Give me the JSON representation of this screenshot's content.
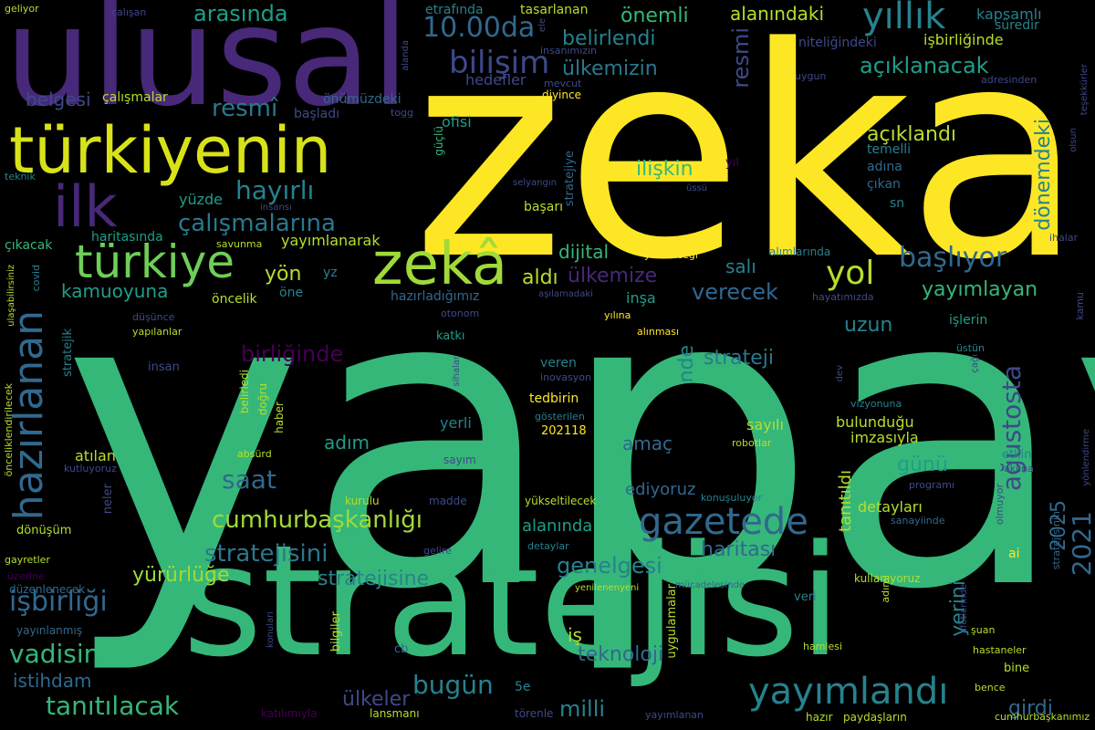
{
  "palette": {
    "background": "#000000",
    "yellow": "#fde725",
    "lime": "#b5de2b",
    "green": "#35b779",
    "green2": "#1f9e89",
    "teal": "#26828e",
    "blue": "#31688e",
    "indigo": "#3e4989",
    "purple": "#482878",
    "dark_purple": "#440154"
  },
  "words": [
    "yapay",
    "zeka",
    "stratejisi",
    "ulusal",
    "türkiyenin",
    "zekâ",
    "ilk",
    "türkiye",
    "hazırlanan",
    "yıllık",
    "bilişim",
    "gazetede",
    "yayımlandı",
    "2021",
    "2025",
    "ağustosta",
    "cumhurbaşkanlığı",
    "tanıtılacak",
    "işbirliği",
    "vadisinde",
    "stratejisini",
    "stratejisine",
    "hayırlı",
    "çalışmalarına",
    "yol",
    "başlıyor",
    "arasında",
    "belirlendi",
    "ülkemizin",
    "açıklanacak",
    "önemli",
    "alanındaki",
    "10.00da",
    "resmî",
    "resmi",
    "belgesi",
    "çalışmalar",
    "açıklandı",
    "ilişkin",
    "dönemdeki",
    "saat",
    "verecek",
    "strateji",
    "haritası",
    "genelgesi",
    "bugün",
    "milli",
    "girdi",
    "yürürlüğe",
    "teknoloji",
    "istihdam",
    "iş",
    "ülkeler",
    "aldı",
    "ülkemize",
    "yön",
    "kamuoyuna",
    "yayımlayan",
    "birliğinde",
    "nde",
    "uzun",
    "amaç",
    "günü",
    "yerini",
    "ediyoruz",
    "tanıtıldı",
    "dijital",
    "salı",
    "yüzde",
    "yayımlanarak",
    "adım",
    "atılan",
    "yerli",
    "sayılı",
    "bulunduğu",
    "imzasıyla",
    "detayları",
    "işbirliğinde",
    "kapsamlı",
    "hedefler",
    "başladı",
    "ofisi",
    "etrafında",
    "tasarlanan",
    "önümüzdeki",
    "diyince",
    "insanımızın",
    "mevcut",
    "süredir",
    "niteliğindeki",
    "adresinden",
    "teşekkürler",
    "olsun",
    "temelli",
    "adına",
    "çıkan",
    "sn",
    "yıl",
    "başarı",
    "stratejiye",
    "güçlü",
    "selyangın",
    "üssü",
    "haritasında",
    "savunma",
    "insansı",
    "çıkacak",
    "covid",
    "ihalar",
    "kamu",
    "geliyor",
    "çalışan",
    "teknik",
    "togg",
    "uygun",
    "öncelik",
    "hazırladığımız",
    "aşılamadaki",
    "otonom",
    "alımlarında",
    "hayatımızda",
    "yılına",
    "alınması",
    "işlerin",
    "katkı",
    "insan",
    "veren",
    "inovasyon",
    "tedbirin",
    "gösterilen",
    "202118",
    "haber",
    "belirledi",
    "doğru",
    "sihalar",
    "vizyonuna",
    "dev",
    "üstün",
    "çağı",
    "robotlar",
    "absürd",
    "sayım",
    "kutluyoruz",
    "etkin",
    "aklına",
    "programı",
    "yönlendirme",
    "kurulu",
    "madde",
    "yükseltilecek",
    "konuşuluyor",
    "sanayiinde",
    "ai",
    "olmuyor",
    "dönüşüm",
    "gelire",
    "detaylar",
    "gayretler",
    "düzenlenecek",
    "üzerine",
    "yayınlanmış",
    "yenilenenyeni",
    "mücadelesinde",
    "kullanıyoruz",
    "veri",
    "adımı",
    "hamlesi",
    "hastaneler",
    "bine",
    "bence",
    "cumhurbaşkanımız",
    "şuan",
    "afetlerinde",
    "konuları",
    "bilgiler",
    "uygulamalar",
    "cb",
    "5e",
    "katılımıyla",
    "lansmanı",
    "törenle",
    "yayımlanan",
    "hazır",
    "paydaşların",
    "ulaşabilirsiniz",
    "önceliklendirilecek",
    "neler",
    "stratejik",
    "düşünce",
    "yapılanlar",
    "yz",
    "öne",
    "alanda",
    "ele",
    "yürüteceği",
    "stratejisinin",
    "inşa",
    "alanında"
  ]
}
